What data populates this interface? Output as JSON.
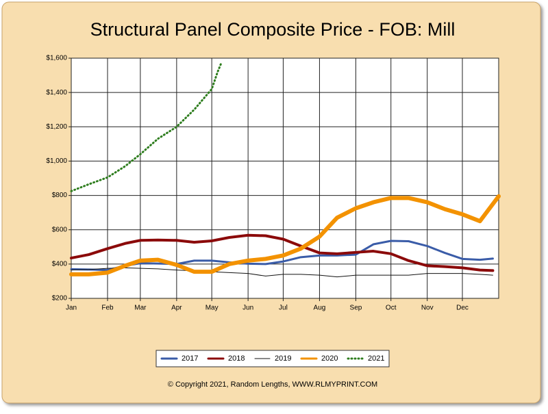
{
  "chart_data": {
    "type": "line",
    "title": "Structural Panel Composite Price - FOB: Mill",
    "source": "© Copyright 2021, Random Lengths, WWW.RLMYPRINT.COM",
    "xlim": [
      0,
      365
    ],
    "xticks": [
      {
        "value": 0,
        "label": "Jan"
      },
      {
        "value": 31,
        "label": "Feb"
      },
      {
        "value": 59,
        "label": "Mar"
      },
      {
        "value": 90,
        "label": "Apr"
      },
      {
        "value": 120,
        "label": "May"
      },
      {
        "value": 151,
        "label": "Jun"
      },
      {
        "value": 181,
        "label": "Jul"
      },
      {
        "value": 212,
        "label": "Aug"
      },
      {
        "value": 243,
        "label": "Sep"
      },
      {
        "value": 273,
        "label": "Oct"
      },
      {
        "value": 304,
        "label": "Nov"
      },
      {
        "value": 334,
        "label": "Dec"
      }
    ],
    "ylim": [
      200,
      1600
    ],
    "yticks": [
      {
        "value": 200,
        "label": "$200"
      },
      {
        "value": 400,
        "label": "$400"
      },
      {
        "value": 600,
        "label": "$600"
      },
      {
        "value": 800,
        "label": "$800"
      },
      {
        "value": 1000,
        "label": "$1,000"
      },
      {
        "value": 1200,
        "label": "$1,200"
      },
      {
        "value": 1400,
        "label": "$1,400"
      },
      {
        "value": 1600,
        "label": "$1,600"
      }
    ],
    "grid": true,
    "legend": "bottom",
    "series": [
      {
        "name": "2017",
        "color": "#3a5ca8",
        "width": 3,
        "x": [
          0,
          15,
          31,
          46,
          59,
          74,
          90,
          105,
          120,
          135,
          151,
          166,
          181,
          196,
          212,
          227,
          243,
          258,
          273,
          288,
          304,
          319,
          334,
          349,
          360
        ],
        "values": [
          370,
          368,
          365,
          390,
          405,
          403,
          400,
          420,
          420,
          410,
          402,
          400,
          415,
          440,
          450,
          450,
          455,
          515,
          535,
          533,
          505,
          465,
          430,
          425,
          432
        ]
      },
      {
        "name": "2018",
        "color": "#8b0a0a",
        "width": 4,
        "x": [
          0,
          15,
          31,
          46,
          59,
          74,
          90,
          105,
          120,
          135,
          151,
          166,
          181,
          196,
          212,
          227,
          243,
          258,
          273,
          288,
          304,
          319,
          334,
          349,
          360
        ],
        "values": [
          435,
          455,
          490,
          520,
          538,
          540,
          538,
          527,
          535,
          555,
          568,
          565,
          545,
          505,
          465,
          460,
          468,
          475,
          460,
          420,
          390,
          385,
          378,
          365,
          362
        ]
      },
      {
        "name": "2019",
        "color": "#111111",
        "width": 1,
        "x": [
          0,
          15,
          31,
          46,
          59,
          74,
          90,
          105,
          120,
          135,
          151,
          166,
          181,
          196,
          212,
          227,
          243,
          258,
          273,
          288,
          304,
          319,
          334,
          349,
          360
        ],
        "values": [
          365,
          368,
          375,
          378,
          375,
          372,
          365,
          360,
          355,
          350,
          345,
          330,
          340,
          340,
          335,
          325,
          335,
          335,
          335,
          335,
          345,
          345,
          345,
          340,
          335
        ]
      },
      {
        "name": "2020",
        "color": "#f39200",
        "width": 6,
        "x": [
          0,
          15,
          31,
          46,
          59,
          74,
          90,
          105,
          120,
          135,
          151,
          166,
          181,
          196,
          212,
          227,
          243,
          258,
          273,
          288,
          304,
          319,
          334,
          349,
          365
        ],
        "values": [
          340,
          340,
          350,
          390,
          420,
          425,
          395,
          355,
          355,
          400,
          420,
          430,
          450,
          490,
          560,
          670,
          725,
          760,
          785,
          785,
          760,
          720,
          690,
          650,
          795
        ]
      },
      {
        "name": "2021",
        "color": "#2e7d1e",
        "width": 3,
        "dash": true,
        "x": [
          0,
          15,
          31,
          46,
          59,
          74,
          90,
          105,
          120,
          125,
          128
        ],
        "values": [
          825,
          865,
          905,
          970,
          1040,
          1130,
          1200,
          1300,
          1420,
          1520,
          1570
        ]
      }
    ]
  }
}
